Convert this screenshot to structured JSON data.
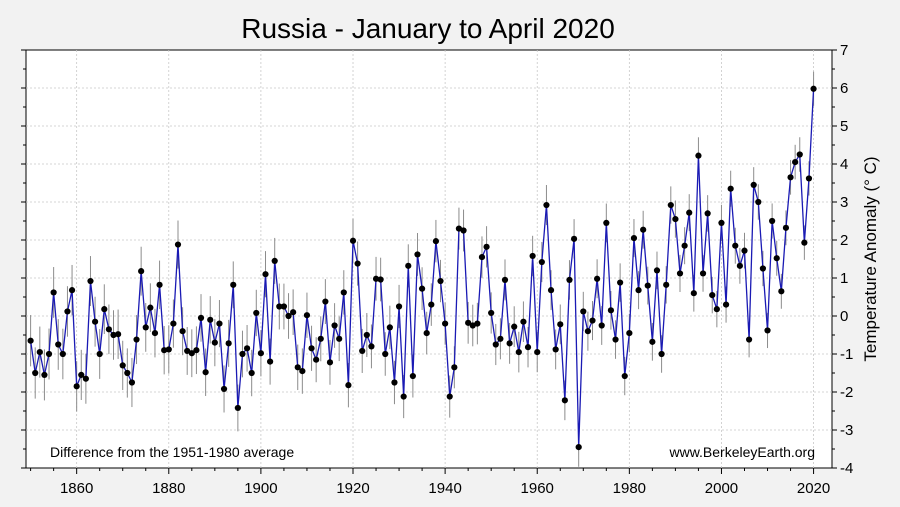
{
  "chart_data": {
    "type": "line",
    "title": "Russia - January to April 2020",
    "xlabel": "",
    "ylabel": "Temperature Anomaly (° C)",
    "xlim": [
      1849,
      2024
    ],
    "ylim": [
      -4,
      7
    ],
    "x_ticks": [
      1860,
      1880,
      1900,
      1920,
      1940,
      1960,
      1980,
      2000,
      2020
    ],
    "y_ticks": [
      -4,
      -3,
      -2,
      -1,
      0,
      1,
      2,
      3,
      4,
      5,
      6,
      7
    ],
    "grid": true,
    "y_axis_side": "right",
    "annotations": {
      "baseline_note": "Difference from the 1951-1980 average",
      "source": "www.BerkeleyEarth.org"
    },
    "colors": {
      "line": "#1a1ab4",
      "points": "#000000",
      "error_bars": "#8c8c8c",
      "background": "#f2f2f2",
      "plot_area": "#ffffff"
    },
    "series": [
      {
        "x_start": 1850,
        "x_step": 1,
        "values": [
          -0.65,
          -1.5,
          -0.95,
          -1.55,
          -1.0,
          0.62,
          -0.75,
          -1.0,
          0.12,
          0.68,
          -1.85,
          -1.55,
          -1.65,
          0.92,
          -0.15,
          -1.0,
          0.18,
          -0.35,
          -0.5,
          -0.48,
          -1.3,
          -1.5,
          -1.75,
          -0.62,
          1.18,
          -0.3,
          0.22,
          -0.45,
          0.82,
          -0.9,
          -0.88,
          -0.2,
          1.88,
          -0.4,
          -0.92,
          -0.98,
          -0.9,
          -0.05,
          -1.48,
          -0.1,
          -0.7,
          -0.2,
          -1.92,
          -0.72,
          0.82,
          -2.42,
          -1.0,
          -0.85,
          -1.5,
          0.08,
          -0.98,
          1.1,
          -1.2,
          1.45,
          0.25,
          0.25,
          0.0,
          0.1,
          -1.35,
          -1.45,
          0.02,
          -0.85,
          -1.15,
          -0.6,
          0.38,
          -1.22,
          -0.25,
          -0.6,
          0.62,
          -1.82,
          1.98,
          1.38,
          -0.92,
          -0.5,
          -0.8,
          0.98,
          0.96,
          -1.0,
          -0.3,
          -1.75,
          0.25,
          -2.12,
          1.32,
          -1.58,
          1.62,
          0.72,
          -0.45,
          0.3,
          1.97,
          0.92,
          -0.2,
          -2.12,
          -1.35,
          2.3,
          2.25,
          -0.18,
          -0.25,
          -0.2,
          1.55,
          1.82,
          0.08,
          -0.75,
          -0.6,
          0.95,
          -0.72,
          -0.28,
          -0.95,
          -0.15,
          -0.82,
          1.58,
          -0.95,
          1.42,
          2.92,
          0.68,
          -0.88,
          -0.22,
          -2.22,
          0.95,
          2.03,
          -3.45,
          0.12,
          -0.4,
          -0.12,
          0.98,
          -0.25,
          2.45,
          0.15,
          -0.62,
          0.88,
          -1.58,
          -0.45,
          2.05,
          0.68,
          2.27,
          0.8,
          -0.68,
          1.2,
          -1.0,
          0.82,
          2.92,
          2.55,
          1.12,
          1.85,
          2.72,
          0.6,
          4.22,
          1.12,
          2.7,
          0.55,
          0.18,
          2.45,
          0.3,
          3.35,
          1.85,
          1.32,
          1.72,
          -0.62,
          3.45,
          3.0,
          1.25,
          -0.38,
          2.5,
          1.52,
          0.65,
          2.32,
          3.65,
          4.05,
          4.25,
          1.93,
          3.62,
          5.98
        ],
        "uncertainty": 0.45
      }
    ]
  }
}
